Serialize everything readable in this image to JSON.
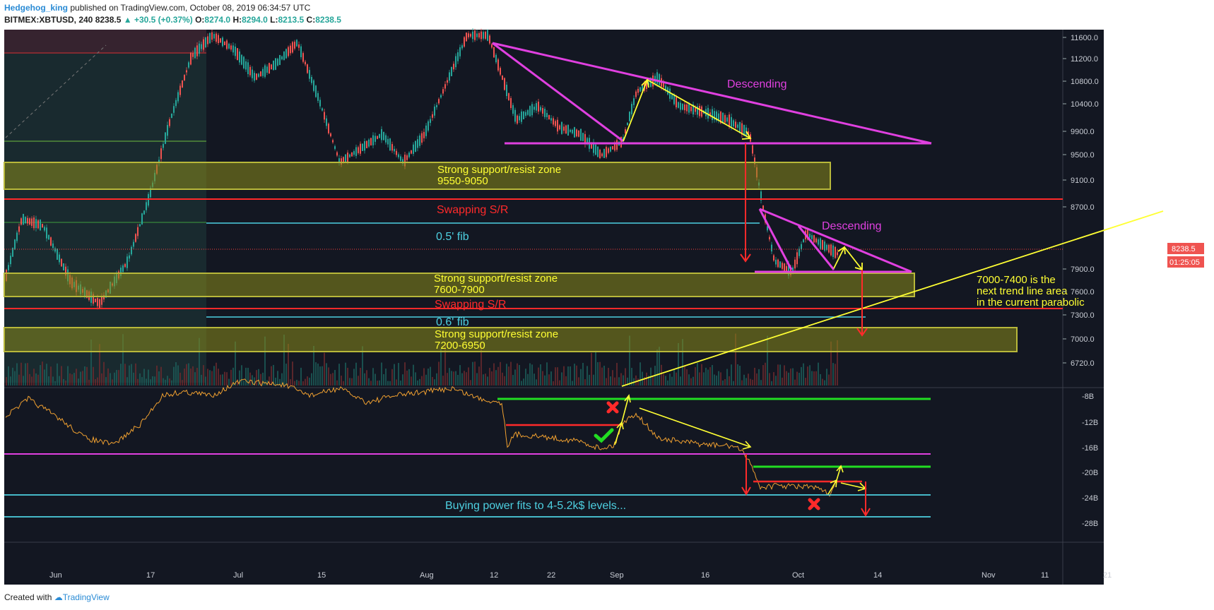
{
  "header": {
    "author": "Hedgehog_king",
    "published": "published on TradingView.com, October 08, 2019 06:34:57 UTC",
    "symbol": "BITMEX:XBTUSD, 240",
    "last": "8238.5",
    "change": "+30.5 (+0.37%)",
    "o_label": "O:",
    "o": "8274.0",
    "h_label": "H:",
    "h": "8294.0",
    "l_label": "L:",
    "l": "8213.5",
    "c_label": "C:",
    "c": "8238.5"
  },
  "footer": {
    "created_with": "Created with",
    "brand": "TradingView"
  },
  "colors": {
    "background": "#131722",
    "magenta": "#e040e0",
    "yellow": "#ffff33",
    "zone": "#8a8a1a",
    "red": "#ff2a2a",
    "cyan": "#4dd0e1",
    "green": "#22dd22",
    "price_line": "#f0a030",
    "up_candle": "#26a69a",
    "down_candle": "#ef5350"
  },
  "chart_data": {
    "type": "candlestick",
    "price_axis": [
      "11600.0",
      "11200.0",
      "10800.0",
      "10400.0",
      "9900.0",
      "9500.0",
      "9100.0",
      "8700.0",
      "8238.5",
      "7900.0",
      "7600.0",
      "7300.0",
      "7000.0",
      "6720.0"
    ],
    "last_price_label": "8238.5",
    "countdown_label": "01:25:05",
    "indicator_axis": [
      "-8B",
      "-12B",
      "-16B",
      "-20B",
      "-24B",
      "-28B"
    ],
    "time_axis": [
      "Jun",
      "17",
      "Jul",
      "15",
      "Aug",
      "12",
      "22",
      "Sep",
      "16",
      "Oct",
      "14",
      "Nov",
      "11",
      "21"
    ],
    "annotations": {
      "descending_top": "Descending",
      "descending_lower": "Descending",
      "zone1_line1": "Strong support/resist zone",
      "zone1_line2": "9550-9050",
      "swap1": "Swapping S/R",
      "fib05": "0.5' fib",
      "zone2_line1": "Strong support/resist zone",
      "zone2_line2": "7600-7900",
      "swap2": "Swapping S/R",
      "fib06": "0.6' fib",
      "zone3_line1": "Strong support/resist zone",
      "zone3_line2": "7200-6950",
      "trend_note_1": "7000-7400 is the",
      "trend_note_2": "next trend line area",
      "trend_note_3": "in the current parabolic",
      "buying_power": "Buying power fits to 4-5.2k$ levels..."
    }
  }
}
